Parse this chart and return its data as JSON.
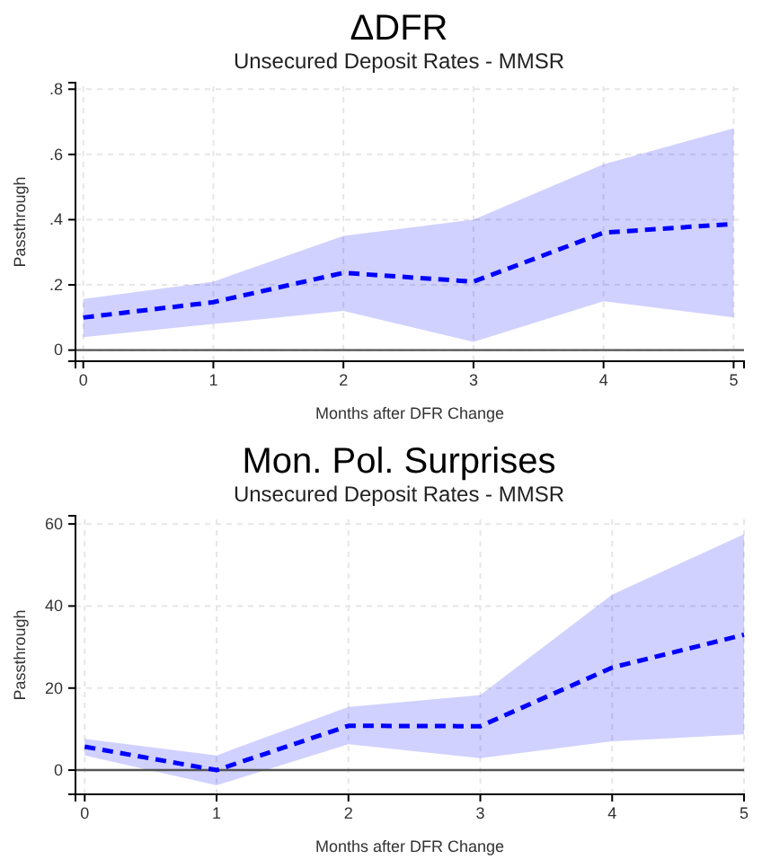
{
  "chart_data": [
    {
      "type": "line",
      "title": "ΔDFR",
      "subtitle": "Unsecured Deposit Rates - MMSR",
      "xlabel": "Months after DFR Change",
      "ylabel": "Passthrough",
      "x": [
        0,
        1,
        2,
        3,
        4,
        5
      ],
      "xlim": [
        -0.06,
        5.08
      ],
      "xticks": [
        0,
        1,
        2,
        3,
        4,
        5
      ],
      "ylim": [
        -0.034,
        0.82
      ],
      "yticks": [
        {
          "value": 0,
          "label": "0"
        },
        {
          "value": 0.2,
          "label": ".2"
        },
        {
          "value": 0.4,
          "label": ".4"
        },
        {
          "value": 0.6,
          "label": ".6"
        },
        {
          "value": 0.8,
          "label": ".8"
        }
      ],
      "grid": true,
      "line_style": "dashed",
      "marker": "none",
      "ref_lines": [
        {
          "axis": "y",
          "value": 0,
          "color": "#555555"
        }
      ],
      "series": [
        {
          "color": "#0000ff",
          "values": [
            0.1,
            0.147,
            0.237,
            0.21,
            0.36,
            0.387
          ],
          "lower": [
            0.04,
            0.08,
            0.12,
            0.025,
            0.15,
            0.1
          ],
          "upper": [
            0.157,
            0.21,
            0.35,
            0.4,
            0.57,
            0.68
          ]
        }
      ]
    },
    {
      "type": "line",
      "title": "Mon. Pol. Surprises",
      "subtitle": "Unsecured Deposit Rates - MMSR",
      "xlabel": "Months after DFR Change",
      "ylabel": "Passthrough",
      "x": [
        0,
        1,
        2,
        3,
        4,
        5
      ],
      "xlim": [
        -0.07,
        5.0
      ],
      "xticks": [
        0,
        1,
        2,
        3,
        4,
        5
      ],
      "ylim": [
        -5.9,
        62
      ],
      "yticks": [
        0,
        20,
        40,
        60
      ],
      "grid": true,
      "line_style": "dashed",
      "marker": "none",
      "ref_lines": [
        {
          "axis": "y",
          "value": 0,
          "color": "#555555"
        }
      ],
      "series": [
        {
          "color": "#0000ff",
          "values": [
            5.7,
            0,
            10.8,
            10.7,
            25,
            33
          ],
          "lower": [
            3.6,
            -3.7,
            6.3,
            2.9,
            7,
            8.7
          ],
          "upper": [
            7.6,
            3.6,
            15.4,
            18.3,
            42.8,
            57.5
          ]
        }
      ]
    }
  ]
}
